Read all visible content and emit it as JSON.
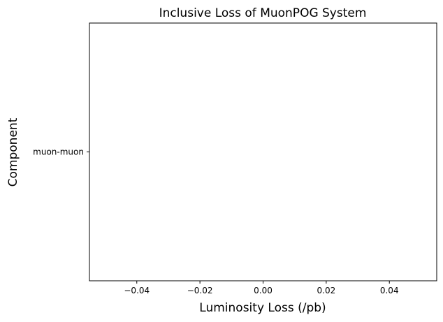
{
  "chart_data": {
    "type": "bar",
    "orientation": "horizontal",
    "title": "Inclusive Loss of MuonPOG System",
    "xlabel": "Luminosity Loss (/pb)",
    "ylabel": "Component",
    "categories": [
      "muon-muon"
    ],
    "values": [
      0
    ],
    "xlim": [
      -0.055,
      0.055
    ],
    "xticks": [
      -0.04,
      -0.02,
      0.0,
      0.02,
      0.04
    ],
    "xtick_labels": [
      "−0.04",
      "−0.02",
      "0.00",
      "0.02",
      "0.04"
    ],
    "grid": false,
    "colors": {
      "frame": "#000000",
      "background": "#ffffff"
    }
  }
}
